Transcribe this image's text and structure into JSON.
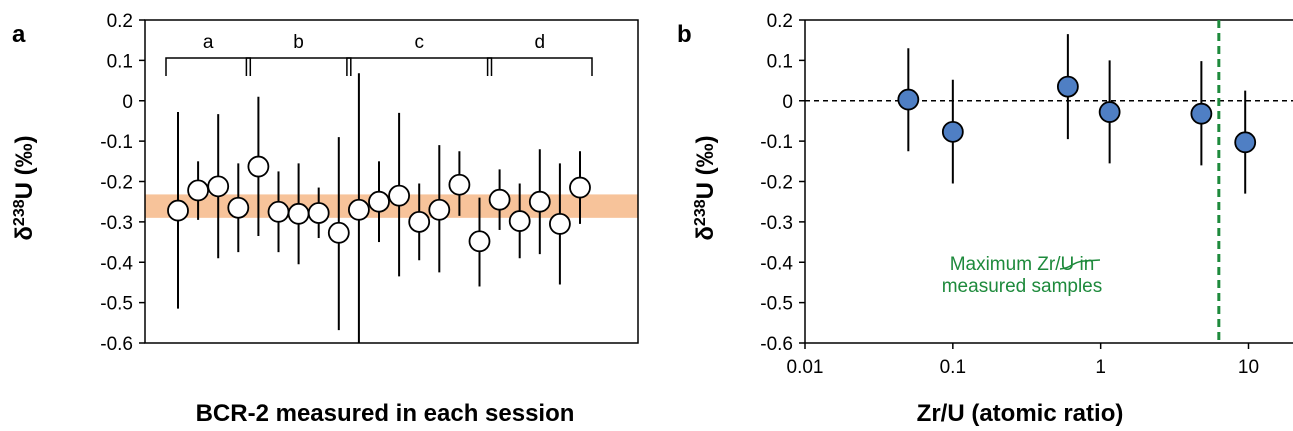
{
  "chart_data": [
    {
      "panel": "a",
      "type": "scatter",
      "xlabel": "BCR-2 measured in each session",
      "ylabel": "δ238U (‰)",
      "ylabel_parts": [
        "δ",
        "238",
        "U (‰)"
      ],
      "ylim": [
        -0.6,
        0.2
      ],
      "yticks": [
        "0.2",
        "0.1",
        "0",
        "-0.1",
        "-0.2",
        "-0.3",
        "-0.4",
        "-0.5",
        "-0.6"
      ],
      "ytick_values": [
        0.2,
        0.1,
        0,
        -0.1,
        -0.2,
        -0.3,
        -0.4,
        -0.5,
        -0.6
      ],
      "band": {
        "low": -0.29,
        "high": -0.232,
        "color": "#f7c39a"
      },
      "groups": [
        {
          "label": "a",
          "first": 1,
          "last": 4
        },
        {
          "label": "b",
          "first": 5,
          "last": 9
        },
        {
          "label": "c",
          "first": 10,
          "last": 16
        },
        {
          "label": "d",
          "first": 17,
          "last": 21
        }
      ],
      "points": [
        {
          "x": 1,
          "y": -0.272,
          "err_low": -0.515,
          "err_high": -0.028
        },
        {
          "x": 2,
          "y": -0.222,
          "err_low": -0.295,
          "err_high": -0.15
        },
        {
          "x": 3,
          "y": -0.212,
          "err_low": -0.39,
          "err_high": -0.033
        },
        {
          "x": 4,
          "y": -0.265,
          "err_low": -0.375,
          "err_high": -0.155
        },
        {
          "x": 5,
          "y": -0.163,
          "err_low": -0.335,
          "err_high": 0.01
        },
        {
          "x": 6,
          "y": -0.275,
          "err_low": -0.375,
          "err_high": -0.175
        },
        {
          "x": 7,
          "y": -0.28,
          "err_low": -0.405,
          "err_high": -0.155
        },
        {
          "x": 8,
          "y": -0.278,
          "err_low": -0.34,
          "err_high": -0.215
        },
        {
          "x": 9,
          "y": -0.327,
          "err_low": -0.568,
          "err_high": -0.09
        },
        {
          "x": 10,
          "y": -0.27,
          "err_low": -0.6,
          "err_high": 0.068
        },
        {
          "x": 11,
          "y": -0.25,
          "err_low": -0.35,
          "err_high": -0.15
        },
        {
          "x": 12,
          "y": -0.235,
          "err_low": -0.435,
          "err_high": -0.03
        },
        {
          "x": 13,
          "y": -0.3,
          "err_low": -0.395,
          "err_high": -0.205
        },
        {
          "x": 14,
          "y": -0.27,
          "err_low": -0.425,
          "err_high": -0.11
        },
        {
          "x": 15,
          "y": -0.208,
          "err_low": -0.285,
          "err_high": -0.125
        },
        {
          "x": 16,
          "y": -0.348,
          "err_low": -0.46,
          "err_high": -0.24
        },
        {
          "x": 17,
          "y": -0.245,
          "err_low": -0.32,
          "err_high": -0.17
        },
        {
          "x": 18,
          "y": -0.298,
          "err_low": -0.39,
          "err_high": -0.205
        },
        {
          "x": 19,
          "y": -0.25,
          "err_low": -0.38,
          "err_high": -0.12
        },
        {
          "x": 20,
          "y": -0.305,
          "err_low": -0.455,
          "err_high": -0.155
        },
        {
          "x": 21,
          "y": -0.215,
          "err_low": -0.305,
          "err_high": -0.125
        }
      ],
      "marker_color": "#ffffff",
      "grid": false
    },
    {
      "panel": "b",
      "type": "scatter",
      "xlabel": "Zr/U (atomic ratio)",
      "ylabel": "δ238U (‰)",
      "ylabel_parts": [
        "δ",
        "238",
        "U (‰)"
      ],
      "x_scale": "log",
      "xlim": [
        0.01,
        20
      ],
      "xticks": [
        "0.01",
        "0.1",
        "1",
        "10"
      ],
      "xtick_values": [
        0.01,
        0.1,
        1,
        10
      ],
      "ylim": [
        -0.6,
        0.2
      ],
      "yticks": [
        "0.2",
        "0.1",
        "0",
        "-0.1",
        "-0.2",
        "-0.3",
        "-0.4",
        "-0.5",
        "-0.6"
      ],
      "ytick_values": [
        0.2,
        0.1,
        0,
        -0.1,
        -0.2,
        -0.3,
        -0.4,
        -0.5,
        -0.6
      ],
      "reference_line_y": 0,
      "max_line": {
        "x": 6.3,
        "color": "#1e8a3c"
      },
      "annotation": [
        "Maximum Zr/U in",
        "measured samples"
      ],
      "points": [
        {
          "x": 0.05,
          "y": 0.003,
          "err_low": -0.125,
          "err_high": 0.13
        },
        {
          "x": 0.1,
          "y": -0.077,
          "err_low": -0.205,
          "err_high": 0.052
        },
        {
          "x": 0.6,
          "y": 0.035,
          "err_low": -0.095,
          "err_high": 0.165
        },
        {
          "x": 1.15,
          "y": -0.028,
          "err_low": -0.155,
          "err_high": 0.1
        },
        {
          "x": 4.8,
          "y": -0.032,
          "err_low": -0.16,
          "err_high": 0.098
        },
        {
          "x": 9.5,
          "y": -0.103,
          "err_low": -0.23,
          "err_high": 0.025
        }
      ],
      "marker_color": "#4f7fc4",
      "grid": false
    }
  ]
}
